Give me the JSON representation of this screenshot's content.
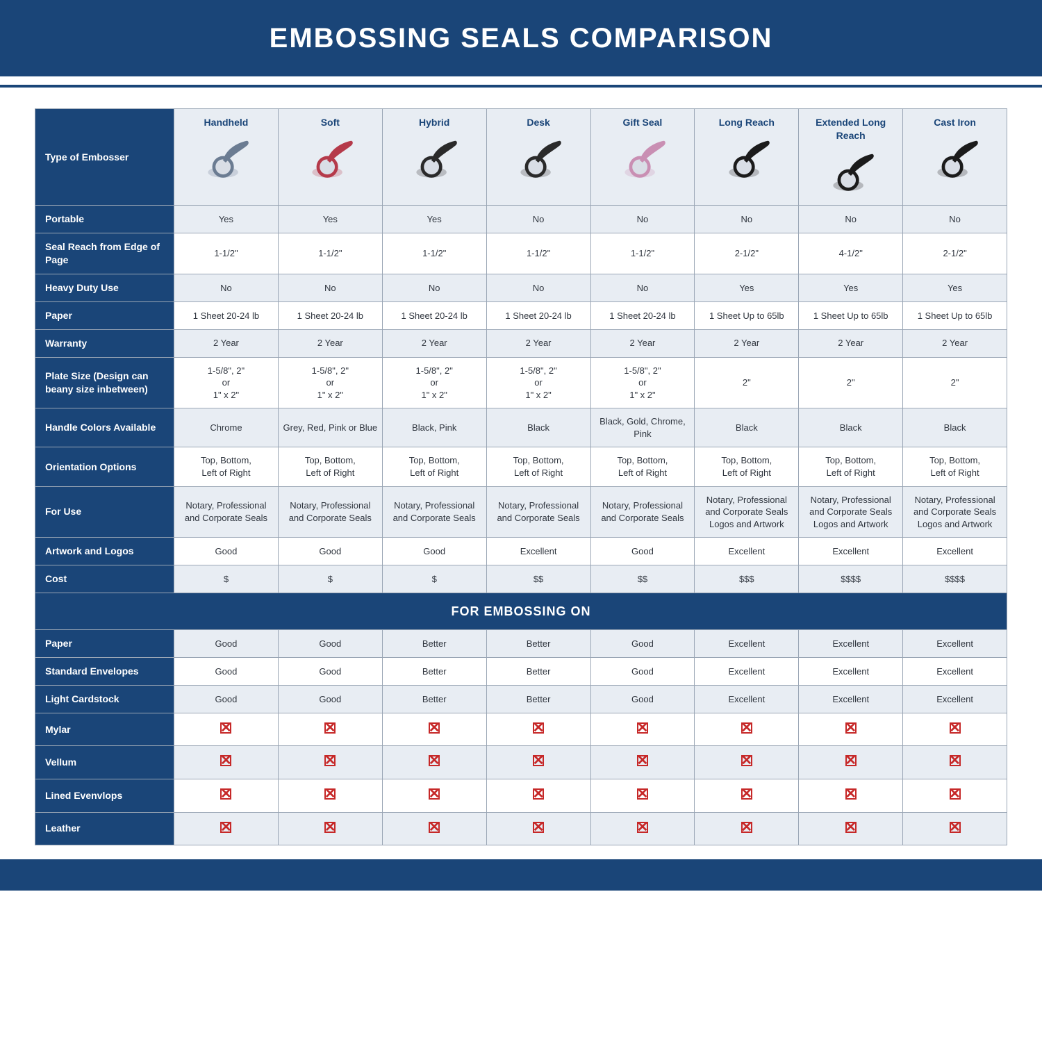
{
  "title": "EMBOSSING SEALS COMPARISON",
  "styling": {
    "brand_color": "#1a4578",
    "header_text_color": "#ffffff",
    "table_border_color": "#9aa6b5",
    "row_alt_bg": "#e8edf3",
    "row_bg": "#ffffff",
    "rowlabel_bg": "#1a4578",
    "rowlabel_text": "#ffffff",
    "x_mark_color": "#c62828",
    "title_fontsize": 40,
    "cell_fontsize": 13,
    "label_fontsize": 14,
    "section_fontsize": 18
  },
  "table": {
    "type": "table",
    "type_label": "Type of Embosser",
    "columns": [
      {
        "title": "Handheld",
        "icon_color": "#6b7c92"
      },
      {
        "title": "Soft",
        "icon_color": "#b53a4a"
      },
      {
        "title": "Hybrid",
        "icon_color": "#2a2a2a"
      },
      {
        "title": "Desk",
        "icon_color": "#2a2a2a"
      },
      {
        "title": "Gift Seal",
        "icon_color": "#c98fb3"
      },
      {
        "title": "Long Reach",
        "icon_color": "#1b1b1b"
      },
      {
        "title": "Extended Long Reach",
        "icon_color": "#1b1b1b"
      },
      {
        "title": "Cast Iron",
        "icon_color": "#1b1b1b"
      }
    ],
    "rows": [
      {
        "label": "Portable",
        "cells": [
          "Yes",
          "Yes",
          "Yes",
          "No",
          "No",
          "No",
          "No",
          "No"
        ]
      },
      {
        "label": "Seal Reach from Edge of Page",
        "cells": [
          "1-1/2\"",
          "1-1/2\"",
          "1-1/2\"",
          "1-1/2\"",
          "1-1/2\"",
          "2-1/2\"",
          "4-1/2\"",
          "2-1/2\""
        ]
      },
      {
        "label": "Heavy Duty Use",
        "cells": [
          "No",
          "No",
          "No",
          "No",
          "No",
          "Yes",
          "Yes",
          "Yes"
        ]
      },
      {
        "label": "Paper",
        "cells": [
          "1 Sheet 20-24 lb",
          "1 Sheet 20-24 lb",
          "1 Sheet 20-24 lb",
          "1 Sheet 20-24 lb",
          "1 Sheet 20-24 lb",
          "1 Sheet Up to 65lb",
          "1 Sheet Up to 65lb",
          "1 Sheet Up to 65lb"
        ]
      },
      {
        "label": "Warranty",
        "cells": [
          "2 Year",
          "2 Year",
          "2 Year",
          "2 Year",
          "2 Year",
          "2 Year",
          "2 Year",
          "2 Year"
        ]
      },
      {
        "label": "Plate Size (Design can beany size inbetween)",
        "cells": [
          "1-5/8\", 2\"\nor\n1\" x 2\"",
          "1-5/8\", 2\"\nor\n1\" x 2\"",
          "1-5/8\", 2\"\nor\n1\" x 2\"",
          "1-5/8\", 2\"\nor\n1\" x 2\"",
          "1-5/8\", 2\"\nor\n1\" x 2\"",
          "2\"",
          "2\"",
          "2\""
        ]
      },
      {
        "label": "Handle Colors Available",
        "cells": [
          "Chrome",
          "Grey, Red, Pink or Blue",
          "Black, Pink",
          "Black",
          "Black, Gold, Chrome, Pink",
          "Black",
          "Black",
          "Black"
        ]
      },
      {
        "label": "Orientation Options",
        "cells": [
          "Top, Bottom,\nLeft of Right",
          "Top, Bottom,\nLeft of Right",
          "Top, Bottom,\nLeft of Right",
          "Top, Bottom,\nLeft of Right",
          "Top, Bottom,\nLeft of Right",
          "Top, Bottom,\nLeft of Right",
          "Top, Bottom,\nLeft of Right",
          "Top, Bottom,\nLeft of Right"
        ]
      },
      {
        "label": "For Use",
        "cells": [
          "Notary, Professional and Corporate Seals",
          "Notary, Professional and Corporate Seals",
          "Notary, Professional and Corporate Seals",
          "Notary, Professional and Corporate Seals",
          "Notary, Professional and Corporate Seals",
          "Notary, Professional and Corporate Seals Logos and Artwork",
          "Notary, Professional and Corporate Seals Logos and Artwork",
          "Notary, Professional and Corporate Seals Logos and Artwork"
        ]
      },
      {
        "label": "Artwork and Logos",
        "cells": [
          "Good",
          "Good",
          "Good",
          "Excellent",
          "Good",
          "Excellent",
          "Excellent",
          "Excellent"
        ]
      },
      {
        "label": "Cost",
        "cells": [
          "$",
          "$",
          "$",
          "$$",
          "$$",
          "$$$",
          "$$$$",
          "$$$$"
        ]
      }
    ],
    "section_label": "FOR EMBOSSING ON",
    "embossing_rows": [
      {
        "label": "Paper",
        "cells": [
          "Good",
          "Good",
          "Better",
          "Better",
          "Good",
          "Excellent",
          "Excellent",
          "Excellent"
        ]
      },
      {
        "label": "Standard Envelopes",
        "cells": [
          "Good",
          "Good",
          "Better",
          "Better",
          "Good",
          "Excellent",
          "Excellent",
          "Excellent"
        ]
      },
      {
        "label": "Light Cardstock",
        "cells": [
          "Good",
          "Good",
          "Better",
          "Better",
          "Good",
          "Excellent",
          "Excellent",
          "Excellent"
        ]
      },
      {
        "label": "Mylar",
        "cells": [
          "X",
          "X",
          "X",
          "X",
          "X",
          "X",
          "X",
          "X"
        ]
      },
      {
        "label": "Vellum",
        "cells": [
          "X",
          "X",
          "X",
          "X",
          "X",
          "X",
          "X",
          "X"
        ]
      },
      {
        "label": "Lined Evenvlops",
        "cells": [
          "X",
          "X",
          "X",
          "X",
          "X",
          "X",
          "X",
          "X"
        ]
      },
      {
        "label": "Leather",
        "cells": [
          "X",
          "X",
          "X",
          "X",
          "X",
          "X",
          "X",
          "X"
        ]
      }
    ]
  }
}
